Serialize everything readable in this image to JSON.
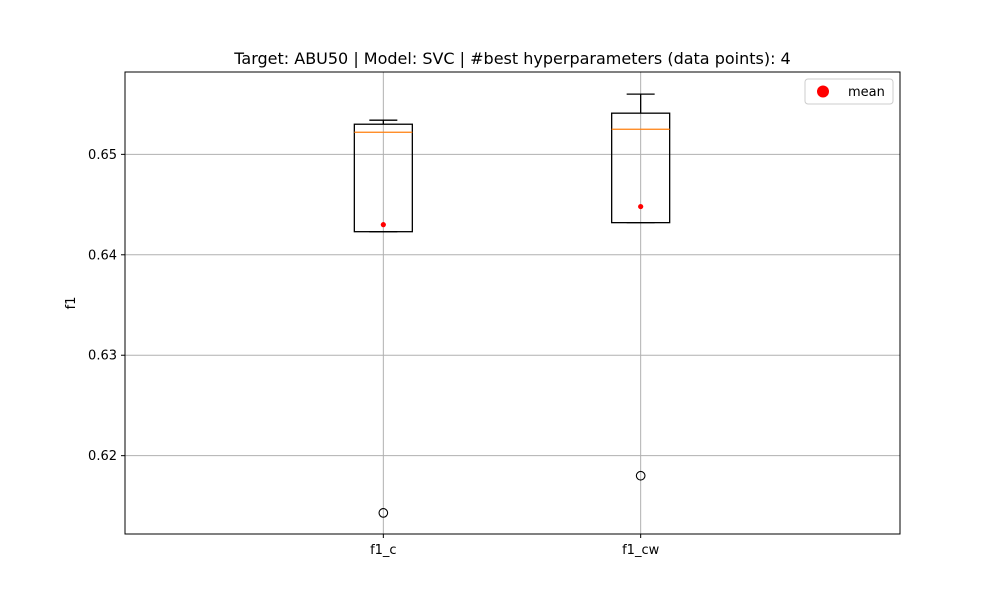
{
  "chart_data": {
    "type": "box",
    "title": "Target: ABU50 | Model: SVC | #best hyperparameters (data points): 4",
    "xlabel": "",
    "ylabel": "f1",
    "categories": [
      "f1_c",
      "f1_cw"
    ],
    "ylim": [
      0.6122,
      0.6582
    ],
    "yticks": [
      0.62,
      0.63,
      0.64,
      0.65
    ],
    "ytick_labels": [
      "0.62",
      "0.63",
      "0.64",
      "0.65"
    ],
    "grid": true,
    "legend": {
      "position": "top-right",
      "entries": [
        {
          "label": "mean",
          "marker": "circle",
          "color": "#ff0000"
        }
      ]
    },
    "boxes": [
      {
        "category": "f1_c",
        "whisker_low": 0.6423,
        "q1": 0.6423,
        "median": 0.6522,
        "q3": 0.653,
        "whisker_high": 0.6534,
        "mean": 0.643,
        "outliers": [
          0.6143
        ]
      },
      {
        "category": "f1_cw",
        "whisker_low": 0.6432,
        "q1": 0.6432,
        "median": 0.6525,
        "q3": 0.6541,
        "whisker_high": 0.656,
        "mean": 0.6448,
        "outliers": [
          0.618
        ]
      }
    ],
    "colors": {
      "box": "#000000",
      "median": "#ff7f0e",
      "mean": "#ff0000",
      "grid": "#b0b0b0"
    }
  }
}
